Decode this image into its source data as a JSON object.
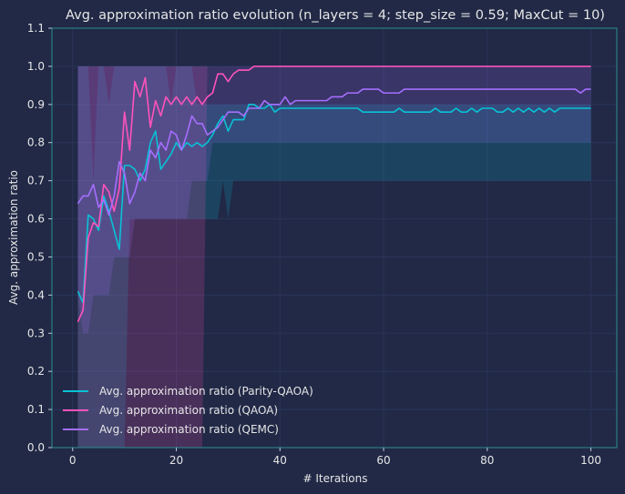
{
  "chart_data": {
    "type": "line",
    "title": "Avg. approximation ratio evolution (n_layers = 4; step_size = 0.59; MaxCut = 10)",
    "xlabel": "# Iterations",
    "ylabel": "Avg. approximation ratio",
    "xlim": [
      -4,
      105
    ],
    "ylim": [
      0,
      1.1
    ],
    "xticks": [
      0,
      20,
      40,
      60,
      80,
      100
    ],
    "yticks": [
      0.0,
      0.1,
      0.2,
      0.3,
      0.4,
      0.5,
      0.6,
      0.7,
      0.8,
      0.9,
      1.0,
      1.1
    ],
    "grid": true,
    "legend_position": "lower-left",
    "background": "#212946",
    "grid_color": "#2A3459",
    "series": [
      {
        "name": "Avg. approximation ratio (Parity-QAOA)",
        "color": "#08C2D6",
        "band_color": "#08C2D6",
        "values": [
          0.41,
          0.38,
          0.61,
          0.6,
          0.57,
          0.66,
          0.62,
          0.57,
          0.52,
          0.74,
          0.74,
          0.73,
          0.7,
          0.73,
          0.8,
          0.83,
          0.73,
          0.75,
          0.77,
          0.8,
          0.78,
          0.8,
          0.79,
          0.8,
          0.79,
          0.8,
          0.82,
          0.85,
          0.87,
          0.83,
          0.86,
          0.86,
          0.86,
          0.9,
          0.9,
          0.89,
          0.89,
          0.9,
          0.88,
          0.89,
          0.89,
          0.89,
          0.89,
          0.89,
          0.89,
          0.89,
          0.89,
          0.89,
          0.89,
          0.89,
          0.89,
          0.89,
          0.89,
          0.89,
          0.89,
          0.88,
          0.88,
          0.88,
          0.88,
          0.88,
          0.88,
          0.88,
          0.89,
          0.88,
          0.88,
          0.88,
          0.88,
          0.88,
          0.88,
          0.89,
          0.88,
          0.88,
          0.88,
          0.89,
          0.88,
          0.88,
          0.89,
          0.88,
          0.89,
          0.89,
          0.89,
          0.88,
          0.88,
          0.89,
          0.88,
          0.89,
          0.88,
          0.89,
          0.88,
          0.89,
          0.88,
          0.89,
          0.88,
          0.89,
          0.89,
          0.89,
          0.89,
          0.89,
          0.89,
          0.89
        ],
        "upper": [
          1.0,
          1.0,
          1.0,
          0.7,
          1.0,
          1.0,
          0.9,
          1.0,
          1.0,
          1.0,
          1.0,
          1.0,
          1.0,
          1.0,
          1.0,
          1.0,
          1.0,
          1.0,
          0.9,
          1.0,
          1.0,
          1.0,
          1.0,
          0.9,
          0.9,
          0.9,
          0.9,
          0.9,
          0.9,
          0.9,
          0.9,
          0.9,
          0.9,
          0.9,
          0.9,
          0.9,
          0.9,
          0.9,
          0.9,
          0.9,
          0.9,
          0.9,
          0.9,
          0.9,
          0.9,
          0.9,
          0.9,
          0.9,
          0.9,
          0.9,
          0.9,
          0.9,
          0.9,
          0.9,
          0.9,
          0.9,
          0.9,
          0.9,
          0.9,
          0.9,
          0.9,
          0.9,
          0.9,
          0.9,
          0.9,
          0.9,
          0.9,
          0.9,
          0.9,
          0.9,
          0.9,
          0.9,
          0.9,
          0.9,
          0.9,
          0.9,
          0.9,
          0.9,
          0.9,
          0.9,
          0.9,
          0.9,
          0.9,
          0.9,
          0.9,
          0.9,
          0.9,
          0.9,
          0.9,
          0.9,
          0.9,
          0.9,
          0.9,
          0.9,
          0.9,
          0.9,
          0.9,
          0.9,
          0.9,
          0.9
        ],
        "lower": [
          0.0,
          0.0,
          0.0,
          0.0,
          0.0,
          0.0,
          0.0,
          0.0,
          0.0,
          0.0,
          0.6,
          0.6,
          0.6,
          0.6,
          0.6,
          0.6,
          0.6,
          0.6,
          0.6,
          0.6,
          0.6,
          0.6,
          0.6,
          0.6,
          0.6,
          0.6,
          0.6,
          0.6,
          0.7,
          0.6,
          0.7,
          0.7,
          0.7,
          0.7,
          0.7,
          0.7,
          0.7,
          0.7,
          0.7,
          0.7,
          0.7,
          0.7,
          0.7,
          0.7,
          0.7,
          0.7,
          0.7,
          0.7,
          0.7,
          0.7,
          0.7,
          0.7,
          0.7,
          0.7,
          0.7,
          0.7,
          0.7,
          0.7,
          0.7,
          0.7,
          0.7,
          0.7,
          0.7,
          0.7,
          0.7,
          0.7,
          0.7,
          0.7,
          0.7,
          0.7,
          0.7,
          0.7,
          0.7,
          0.7,
          0.7,
          0.7,
          0.7,
          0.7,
          0.7,
          0.7,
          0.7,
          0.7,
          0.7,
          0.7,
          0.7,
          0.7,
          0.7,
          0.7,
          0.7,
          0.7,
          0.7,
          0.7,
          0.7,
          0.7,
          0.7,
          0.7,
          0.7,
          0.7,
          0.7,
          0.7
        ]
      },
      {
        "name": "Avg. approximation ratio (QAOA)",
        "color": "#FE53BB",
        "band_color": "#FE53BB",
        "values": [
          0.33,
          0.36,
          0.55,
          0.59,
          0.58,
          0.69,
          0.67,
          0.62,
          0.68,
          0.88,
          0.78,
          0.96,
          0.92,
          0.97,
          0.84,
          0.91,
          0.87,
          0.92,
          0.9,
          0.92,
          0.9,
          0.92,
          0.9,
          0.92,
          0.9,
          0.92,
          0.93,
          0.98,
          0.98,
          0.96,
          0.98,
          0.99,
          0.99,
          0.99,
          1.0,
          1.0,
          1.0,
          1.0,
          1.0,
          1.0,
          1.0,
          1.0,
          1.0,
          1.0,
          1.0,
          1.0,
          1.0,
          1.0,
          1.0,
          1.0,
          1.0,
          1.0,
          1.0,
          1.0,
          1.0,
          1.0,
          1.0,
          1.0,
          1.0,
          1.0,
          1.0,
          1.0,
          1.0,
          1.0,
          1.0,
          1.0,
          1.0,
          1.0,
          1.0,
          1.0,
          1.0,
          1.0,
          1.0,
          1.0,
          1.0,
          1.0,
          1.0,
          1.0,
          1.0,
          1.0,
          1.0,
          1.0,
          1.0,
          1.0,
          1.0,
          1.0,
          1.0,
          1.0,
          1.0,
          1.0,
          1.0,
          1.0,
          1.0,
          1.0,
          1.0,
          1.0,
          1.0,
          1.0,
          1.0,
          1.0
        ],
        "upper": [
          1.0,
          1.0,
          1.0,
          1.0,
          1.0,
          1.0,
          1.0,
          1.0,
          1.0,
          1.0,
          1.0,
          1.0,
          1.0,
          1.0,
          1.0,
          1.0,
          1.0,
          1.0,
          1.0,
          1.0,
          1.0,
          1.0,
          1.0,
          1.0,
          1.0,
          1.0,
          1.0,
          1.0,
          1.0,
          1.0,
          1.0,
          1.0,
          1.0,
          1.0,
          1.0,
          1.0,
          1.0,
          1.0,
          1.0,
          1.0,
          1.0,
          1.0,
          1.0,
          1.0,
          1.0,
          1.0,
          1.0,
          1.0,
          1.0,
          1.0,
          1.0,
          1.0,
          1.0,
          1.0,
          1.0,
          1.0,
          1.0,
          1.0,
          1.0,
          1.0,
          1.0,
          1.0,
          1.0,
          1.0,
          1.0,
          1.0,
          1.0,
          1.0,
          1.0,
          1.0,
          1.0,
          1.0,
          1.0,
          1.0,
          1.0,
          1.0,
          1.0,
          1.0,
          1.0,
          1.0,
          1.0,
          1.0,
          1.0,
          1.0,
          1.0,
          1.0,
          1.0,
          1.0,
          1.0,
          1.0,
          1.0,
          1.0,
          1.0,
          1.0,
          1.0,
          1.0,
          1.0,
          1.0,
          1.0,
          1.0
        ],
        "lower": [
          0.0,
          0.0,
          0.0,
          0.0,
          0.0,
          0.0,
          0.0,
          0.0,
          0.0,
          0.0,
          0.0,
          0.0,
          0.0,
          0.0,
          0.0,
          0.0,
          0.0,
          0.0,
          0.0,
          0.0,
          0.0,
          0.0,
          0.0,
          0.0,
          0.0,
          1.0,
          1.0,
          1.0,
          1.0,
          1.0,
          1.0,
          1.0,
          1.0,
          1.0,
          1.0,
          1.0,
          1.0,
          1.0,
          1.0,
          1.0,
          1.0,
          1.0,
          1.0,
          1.0,
          1.0,
          1.0,
          1.0,
          1.0,
          1.0,
          1.0,
          1.0,
          1.0,
          1.0,
          1.0,
          1.0,
          1.0,
          1.0,
          1.0,
          1.0,
          1.0,
          1.0,
          1.0,
          1.0,
          1.0,
          1.0,
          1.0,
          1.0,
          1.0,
          1.0,
          1.0,
          1.0,
          1.0,
          1.0,
          1.0,
          1.0,
          1.0,
          1.0,
          1.0,
          1.0,
          1.0,
          1.0,
          1.0,
          1.0,
          1.0,
          1.0,
          1.0,
          1.0,
          1.0,
          1.0,
          1.0,
          1.0,
          1.0,
          1.0,
          1.0,
          1.0,
          1.0,
          1.0,
          1.0,
          1.0,
          1.0
        ]
      },
      {
        "name": "Avg. approximation ratio (QEMC)",
        "color": "#A66EFF",
        "band_color": "#A66EFF",
        "values": [
          0.64,
          0.66,
          0.66,
          0.69,
          0.63,
          0.65,
          0.61,
          0.66,
          0.75,
          0.72,
          0.64,
          0.67,
          0.72,
          0.7,
          0.78,
          0.76,
          0.8,
          0.78,
          0.83,
          0.82,
          0.78,
          0.82,
          0.87,
          0.85,
          0.85,
          0.82,
          0.83,
          0.84,
          0.86,
          0.88,
          0.88,
          0.88,
          0.87,
          0.89,
          0.89,
          0.89,
          0.91,
          0.9,
          0.9,
          0.9,
          0.92,
          0.9,
          0.91,
          0.91,
          0.91,
          0.91,
          0.91,
          0.91,
          0.91,
          0.92,
          0.92,
          0.92,
          0.93,
          0.93,
          0.93,
          0.94,
          0.94,
          0.94,
          0.94,
          0.93,
          0.93,
          0.93,
          0.93,
          0.94,
          0.94,
          0.94,
          0.94,
          0.94,
          0.94,
          0.94,
          0.94,
          0.94,
          0.94,
          0.94,
          0.94,
          0.94,
          0.94,
          0.94,
          0.94,
          0.94,
          0.94,
          0.94,
          0.94,
          0.94,
          0.94,
          0.94,
          0.94,
          0.94,
          0.94,
          0.94,
          0.94,
          0.94,
          0.94,
          0.94,
          0.94,
          0.94,
          0.94,
          0.93,
          0.94,
          0.94
        ],
        "upper": [
          1.0,
          1.0,
          1.0,
          1.0,
          1.0,
          1.0,
          1.0,
          1.0,
          1.0,
          1.0,
          1.0,
          1.0,
          1.0,
          1.0,
          1.0,
          1.0,
          1.0,
          1.0,
          1.0,
          1.0,
          1.0,
          1.0,
          1.0,
          1.0,
          1.0,
          1.0,
          1.0,
          1.0,
          1.0,
          1.0,
          1.0,
          1.0,
          1.0,
          1.0,
          1.0,
          1.0,
          1.0,
          1.0,
          1.0,
          1.0,
          1.0,
          1.0,
          1.0,
          1.0,
          1.0,
          1.0,
          1.0,
          1.0,
          1.0,
          1.0,
          1.0,
          1.0,
          1.0,
          1.0,
          1.0,
          1.0,
          1.0,
          1.0,
          1.0,
          1.0,
          1.0,
          1.0,
          1.0,
          1.0,
          1.0,
          1.0,
          1.0,
          1.0,
          1.0,
          1.0,
          1.0,
          1.0,
          1.0,
          1.0,
          1.0,
          1.0,
          1.0,
          1.0,
          1.0,
          1.0,
          1.0,
          1.0,
          1.0,
          1.0,
          1.0,
          1.0,
          1.0,
          1.0,
          1.0,
          1.0,
          1.0,
          1.0,
          1.0,
          1.0,
          1.0,
          1.0,
          1.0,
          1.0,
          1.0,
          1.0
        ],
        "lower": [
          0.4,
          0.3,
          0.3,
          0.4,
          0.4,
          0.4,
          0.4,
          0.5,
          0.5,
          0.5,
          0.5,
          0.6,
          0.6,
          0.6,
          0.6,
          0.6,
          0.6,
          0.6,
          0.6,
          0.6,
          0.6,
          0.6,
          0.7,
          0.7,
          0.7,
          0.7,
          0.8,
          0.8,
          0.8,
          0.8,
          0.8,
          0.8,
          0.8,
          0.8,
          0.8,
          0.8,
          0.8,
          0.8,
          0.8,
          0.8,
          0.8,
          0.8,
          0.8,
          0.8,
          0.8,
          0.8,
          0.8,
          0.8,
          0.8,
          0.8,
          0.8,
          0.8,
          0.8,
          0.8,
          0.8,
          0.8,
          0.8,
          0.8,
          0.8,
          0.8,
          0.8,
          0.8,
          0.8,
          0.8,
          0.8,
          0.8,
          0.8,
          0.8,
          0.8,
          0.8,
          0.8,
          0.8,
          0.8,
          0.8,
          0.8,
          0.8,
          0.8,
          0.8,
          0.8,
          0.8,
          0.8,
          0.8,
          0.8,
          0.8,
          0.8,
          0.8,
          0.8,
          0.8,
          0.8,
          0.8,
          0.8,
          0.8,
          0.8,
          0.8,
          0.8,
          0.8,
          0.8,
          0.8,
          0.8,
          0.8
        ]
      }
    ]
  }
}
